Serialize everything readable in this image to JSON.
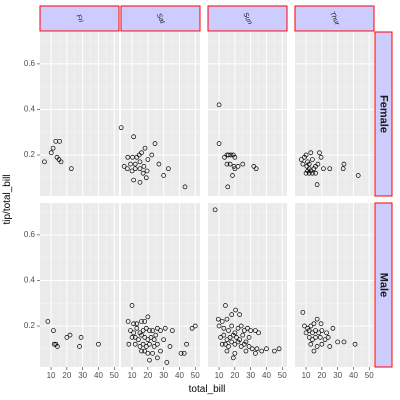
{
  "chart_data": {
    "type": "scatter",
    "title": "",
    "xlabel": "total_bill",
    "ylabel": "tip/total_bill",
    "xlim": [
      3,
      53
    ],
    "ylim": [
      0.02,
      0.74
    ],
    "x_ticks": [
      10,
      20,
      30,
      40,
      50
    ],
    "x_tick_labels": [
      "10",
      "20",
      "30",
      "40",
      "50"
    ],
    "y_ticks": [
      0.2,
      0.4,
      0.6
    ],
    "y_tick_labels": [
      "0.2",
      "0.4",
      "0.6"
    ],
    "grid": true,
    "facet_cols": [
      "Fri",
      "Sat",
      "Sun",
      "Thur"
    ],
    "facet_rows": [
      "Female",
      "Male"
    ],
    "colors": {
      "panel_bg": "#ebebeb",
      "grid_major": "#ffffff",
      "grid_minor": "#f5f5f5",
      "strip_fill": "#ccccff",
      "strip_border": "#ff0000",
      "point_stroke": "#000000"
    },
    "panels": [
      {
        "col": "Fri",
        "row": "Female",
        "points": [
          [
            5.8,
            0.17
          ],
          [
            10.1,
            0.21
          ],
          [
            11.3,
            0.23
          ],
          [
            13.0,
            0.26
          ],
          [
            15.4,
            0.26
          ],
          [
            13.8,
            0.19
          ],
          [
            15.0,
            0.18
          ],
          [
            16.3,
            0.17
          ],
          [
            22.8,
            0.14
          ]
        ]
      },
      {
        "col": "Sat",
        "row": "Female",
        "points": [
          [
            3.1,
            0.32
          ],
          [
            11.0,
            0.28
          ],
          [
            7.3,
            0.19
          ],
          [
            10.3,
            0.19
          ],
          [
            13.0,
            0.19
          ],
          [
            14.5,
            0.2
          ],
          [
            16.0,
            0.21
          ],
          [
            18.2,
            0.23
          ],
          [
            20.0,
            0.18
          ],
          [
            9.0,
            0.16
          ],
          [
            12.0,
            0.16
          ],
          [
            15.0,
            0.17
          ],
          [
            17.5,
            0.15
          ],
          [
            19.5,
            0.13
          ],
          [
            5.0,
            0.15
          ],
          [
            7.0,
            0.14
          ],
          [
            10.0,
            0.13
          ],
          [
            12.0,
            0.14
          ],
          [
            15.0,
            0.14
          ],
          [
            17.0,
            0.12
          ],
          [
            24.5,
            0.25
          ],
          [
            22.5,
            0.2
          ],
          [
            27.0,
            0.16
          ],
          [
            33.0,
            0.14
          ],
          [
            30.0,
            0.11
          ],
          [
            43.5,
            0.06
          ],
          [
            11.0,
            0.09
          ],
          [
            15.0,
            0.08
          ],
          [
            19.0,
            0.1
          ]
        ]
      },
      {
        "col": "Sun",
        "row": "Female",
        "points": [
          [
            10.0,
            0.42
          ],
          [
            10.0,
            0.25
          ],
          [
            13.5,
            0.19
          ],
          [
            15.0,
            0.2
          ],
          [
            16.0,
            0.2
          ],
          [
            17.5,
            0.2
          ],
          [
            19.0,
            0.2
          ],
          [
            20.0,
            0.19
          ],
          [
            15.0,
            0.16
          ],
          [
            17.0,
            0.16
          ],
          [
            19.5,
            0.15
          ],
          [
            20.0,
            0.14
          ],
          [
            22.0,
            0.15
          ],
          [
            25.0,
            0.16
          ],
          [
            32.0,
            0.15
          ],
          [
            33.5,
            0.14
          ],
          [
            18.5,
            0.11
          ],
          [
            15.5,
            0.06
          ]
        ]
      },
      {
        "col": "Thur",
        "row": "Female",
        "points": [
          [
            7.0,
            0.18
          ],
          [
            8.0,
            0.16
          ],
          [
            9.0,
            0.19
          ],
          [
            10.0,
            0.2
          ],
          [
            11.0,
            0.17
          ],
          [
            12.0,
            0.16
          ],
          [
            13.0,
            0.21
          ],
          [
            14.0,
            0.18
          ],
          [
            10.5,
            0.15
          ],
          [
            12.0,
            0.14
          ],
          [
            13.0,
            0.13
          ],
          [
            15.0,
            0.14
          ],
          [
            16.0,
            0.15
          ],
          [
            17.5,
            0.16
          ],
          [
            18.5,
            0.21
          ],
          [
            19.5,
            0.19
          ],
          [
            10.0,
            0.12
          ],
          [
            11.0,
            0.13
          ],
          [
            12.0,
            0.12
          ],
          [
            14.0,
            0.12
          ],
          [
            16.0,
            0.12
          ],
          [
            21.0,
            0.14
          ],
          [
            25.0,
            0.14
          ],
          [
            33.5,
            0.14
          ],
          [
            34.0,
            0.16
          ],
          [
            43.0,
            0.11
          ],
          [
            17.0,
            0.07
          ]
        ]
      },
      {
        "col": "Fri",
        "row": "Male",
        "points": [
          [
            8.0,
            0.22
          ],
          [
            11.5,
            0.18
          ],
          [
            12.0,
            0.12
          ],
          [
            13.0,
            0.12
          ],
          [
            14.0,
            0.11
          ],
          [
            20.0,
            0.15
          ],
          [
            22.0,
            0.16
          ],
          [
            29.0,
            0.15
          ],
          [
            28.0,
            0.11
          ],
          [
            40.0,
            0.12
          ]
        ]
      },
      {
        "col": "Sat",
        "row": "Male",
        "points": [
          [
            10.0,
            0.29
          ],
          [
            7.5,
            0.22
          ],
          [
            11.0,
            0.21
          ],
          [
            13.0,
            0.21
          ],
          [
            16.0,
            0.22
          ],
          [
            18.0,
            0.22
          ],
          [
            20.0,
            0.24
          ],
          [
            9.0,
            0.18
          ],
          [
            11.0,
            0.17
          ],
          [
            13.0,
            0.19
          ],
          [
            15.0,
            0.17
          ],
          [
            17.0,
            0.18
          ],
          [
            19.0,
            0.19
          ],
          [
            21.0,
            0.18
          ],
          [
            23.0,
            0.18
          ],
          [
            26.0,
            0.19
          ],
          [
            28.0,
            0.18
          ],
          [
            31.0,
            0.19
          ],
          [
            35.5,
            0.18
          ],
          [
            48.0,
            0.19
          ],
          [
            50.0,
            0.2
          ],
          [
            10.0,
            0.15
          ],
          [
            12.0,
            0.15
          ],
          [
            14.0,
            0.14
          ],
          [
            16.0,
            0.16
          ],
          [
            18.0,
            0.15
          ],
          [
            20.0,
            0.14
          ],
          [
            22.0,
            0.15
          ],
          [
            24.0,
            0.14
          ],
          [
            25.0,
            0.16
          ],
          [
            30.0,
            0.14
          ],
          [
            8.0,
            0.12
          ],
          [
            12.0,
            0.12
          ],
          [
            15.0,
            0.11
          ],
          [
            17.0,
            0.12
          ],
          [
            19.0,
            0.11
          ],
          [
            21.0,
            0.12
          ],
          [
            24.0,
            0.11
          ],
          [
            26.0,
            0.12
          ],
          [
            34.0,
            0.11
          ],
          [
            44.5,
            0.12
          ],
          [
            16.0,
            0.09
          ],
          [
            18.0,
            0.09
          ],
          [
            20.0,
            0.08
          ],
          [
            23.0,
            0.08
          ],
          [
            28.0,
            0.09
          ],
          [
            41.0,
            0.08
          ],
          [
            43.0,
            0.08
          ],
          [
            26.0,
            0.06
          ],
          [
            21.0,
            0.05
          ],
          [
            32.0,
            0.04
          ]
        ]
      },
      {
        "col": "Sun",
        "row": "Male",
        "points": [
          [
            7.5,
            0.71
          ],
          [
            14.0,
            0.29
          ],
          [
            9.5,
            0.23
          ],
          [
            12.0,
            0.22
          ],
          [
            15.0,
            0.23
          ],
          [
            18.0,
            0.25
          ],
          [
            20.5,
            0.27
          ],
          [
            23.0,
            0.25
          ],
          [
            10.0,
            0.2
          ],
          [
            13.0,
            0.19
          ],
          [
            16.0,
            0.18
          ],
          [
            18.0,
            0.2
          ],
          [
            20.0,
            0.17
          ],
          [
            22.0,
            0.19
          ],
          [
            24.0,
            0.2
          ],
          [
            26.0,
            0.18
          ],
          [
            28.0,
            0.19
          ],
          [
            30.0,
            0.18
          ],
          [
            33.0,
            0.18
          ],
          [
            35.0,
            0.17
          ],
          [
            11.0,
            0.15
          ],
          [
            13.0,
            0.16
          ],
          [
            15.0,
            0.14
          ],
          [
            17.0,
            0.15
          ],
          [
            19.0,
            0.16
          ],
          [
            21.0,
            0.15
          ],
          [
            23.0,
            0.14
          ],
          [
            25.0,
            0.16
          ],
          [
            27.0,
            0.13
          ],
          [
            29.0,
            0.15
          ],
          [
            12.0,
            0.12
          ],
          [
            14.0,
            0.12
          ],
          [
            16.0,
            0.11
          ],
          [
            18.0,
            0.13
          ],
          [
            20.0,
            0.12
          ],
          [
            22.0,
            0.13
          ],
          [
            24.0,
            0.11
          ],
          [
            26.0,
            0.12
          ],
          [
            29.0,
            0.11
          ],
          [
            31.0,
            0.1
          ],
          [
            34.0,
            0.1
          ],
          [
            40.0,
            0.1
          ],
          [
            45.0,
            0.09
          ],
          [
            48.0,
            0.1
          ],
          [
            15.0,
            0.09
          ],
          [
            20.0,
            0.08
          ],
          [
            27.0,
            0.09
          ],
          [
            33.0,
            0.08
          ],
          [
            37.0,
            0.09
          ],
          [
            19.0,
            0.06
          ]
        ]
      },
      {
        "col": "Thur",
        "row": "Male",
        "points": [
          [
            8.0,
            0.26
          ],
          [
            17.0,
            0.23
          ],
          [
            9.0,
            0.2
          ],
          [
            11.0,
            0.19
          ],
          [
            13.0,
            0.2
          ],
          [
            15.0,
            0.21
          ],
          [
            19.5,
            0.21
          ],
          [
            10.0,
            0.17
          ],
          [
            12.0,
            0.18
          ],
          [
            14.0,
            0.17
          ],
          [
            16.0,
            0.18
          ],
          [
            18.0,
            0.17
          ],
          [
            20.0,
            0.18
          ],
          [
            23.0,
            0.17
          ],
          [
            27.0,
            0.19
          ],
          [
            12.0,
            0.15
          ],
          [
            14.0,
            0.14
          ],
          [
            16.0,
            0.15
          ],
          [
            19.0,
            0.15
          ],
          [
            22.0,
            0.14
          ],
          [
            24.0,
            0.15
          ],
          [
            34.0,
            0.13
          ],
          [
            41.0,
            0.12
          ],
          [
            13.0,
            0.12
          ],
          [
            17.0,
            0.11
          ],
          [
            20.0,
            0.12
          ],
          [
            25.0,
            0.11
          ],
          [
            15.0,
            0.09
          ],
          [
            30.0,
            0.13
          ]
        ]
      }
    ]
  }
}
